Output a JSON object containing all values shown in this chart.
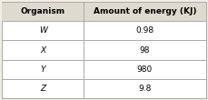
{
  "headers": [
    "Organism",
    "Amount of energy (KJ)"
  ],
  "rows": [
    [
      "W",
      "0.98"
    ],
    [
      "X",
      "98"
    ],
    [
      "Y",
      "980"
    ],
    [
      "Z",
      "9.8"
    ]
  ],
  "background_color": "#f0ede4",
  "border_color": "#aaaaaa",
  "header_bg": "#dedad0",
  "row_alt_bg": "#f8f6f0",
  "header_fontsize": 6.5,
  "cell_fontsize": 6.5,
  "fig_width": 2.29,
  "fig_height": 1.1
}
